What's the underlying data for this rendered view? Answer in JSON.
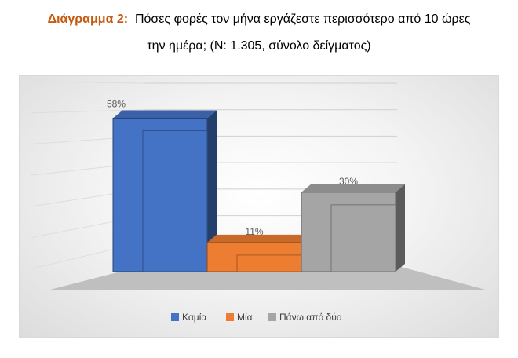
{
  "caption": {
    "label": "Διάγραμμα 2:",
    "text_line1": "Πόσες φορές τον μήνα εργάζεστε περισσότερο από 10 ώρες",
    "text_line2": "την ημέρα; (Ν: 1.305, σύνολο δείγματος)"
  },
  "chart_data": {
    "type": "bar",
    "style": "3d",
    "categories": [
      "Καμία",
      "Μία",
      "Πάνω από δύο"
    ],
    "values": [
      58,
      11,
      30
    ],
    "data_labels": [
      "58%",
      "11%",
      "30%"
    ],
    "colors": [
      "#4472c4",
      "#ed7d31",
      "#a5a5a5"
    ],
    "legend_position": "bottom",
    "grid": true,
    "ylim": [
      0,
      70
    ]
  }
}
